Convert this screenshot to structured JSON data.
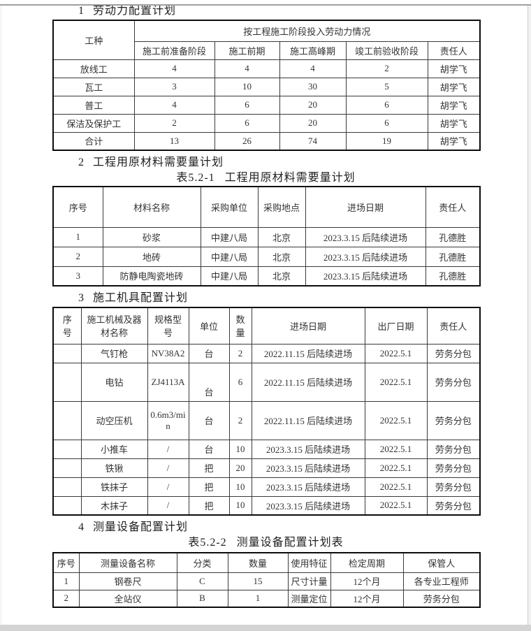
{
  "sections": [
    {
      "number": "1",
      "title": "劳动力配置计划"
    },
    {
      "number": "2",
      "title": "工程用原材料需要量计划"
    },
    {
      "number": "3",
      "title": "施工机具配置计划"
    },
    {
      "number": "4",
      "title": "测量设备配置计划"
    }
  ],
  "captions": [
    {
      "label": "表5.2-1",
      "title": "工程用原材料需要量计划"
    },
    {
      "label": "表5.2-2",
      "title": "测量设备配置计划表"
    }
  ],
  "tables": {
    "labor": {
      "corner_header": "工种",
      "span_header": "按工程施工阶段投入劳动力情况",
      "sub_headers": [
        "施工前准备阶段",
        "施工前期",
        "施工高峰期",
        "竣工前验收阶段",
        "责任人"
      ],
      "rows": [
        [
          "放线工",
          "4",
          "4",
          "4",
          "2",
          "胡学飞"
        ],
        [
          "瓦工",
          "3",
          "10",
          "30",
          "5",
          "胡学飞"
        ],
        [
          "普工",
          "4",
          "6",
          "20",
          "6",
          "胡学飞"
        ],
        [
          "保洁及保护工",
          "2",
          "6",
          "20",
          "6",
          "胡学飞"
        ],
        [
          "合计",
          "13",
          "26",
          "74",
          "19",
          "胡学飞"
        ]
      ]
    },
    "materials": {
      "headers": [
        "序号",
        "材料名称",
        "采购单位",
        "采购地点",
        "进场日期",
        "责任人"
      ],
      "rows": [
        [
          "1",
          "砂浆",
          "中建八局",
          "北京",
          "2023.3.15 后陆续进场",
          "孔德胜"
        ],
        [
          "2",
          "地砖",
          "中建八局",
          "北京",
          "2023.3.15 后陆续进场",
          "孔德胜"
        ],
        [
          "3",
          "防静电陶瓷地砖",
          "中建八局",
          "北京",
          "2023.3.15 后陆续进场",
          "孔德胜"
        ]
      ]
    },
    "machines": {
      "headers": [
        "序号",
        "施工机械及器材名称",
        "规格型号",
        "单位",
        "数量",
        "进场日期",
        "出厂日期",
        "责任人"
      ],
      "rows": [
        [
          "",
          "气钉枪",
          "NV38A2",
          "台",
          "2",
          "2022.11.15 后陆续进场",
          "2022.5.1",
          "劳务分包"
        ],
        [
          "",
          "电钻",
          "ZJ4113A",
          "台",
          "6",
          "2022.11.15 后陆续进场",
          "2022.5.1",
          "劳务分包"
        ],
        [
          "",
          "动空压机",
          "0.6m3/min",
          "台",
          "2",
          "2022.11.15 后陆续进场",
          "2022.5.1",
          "劳务分包"
        ],
        [
          "",
          "小推车",
          "/",
          "台",
          "10",
          "2023.3.15 后陆续进场",
          "2022.5.1",
          "劳务分包"
        ],
        [
          "",
          "铁锹",
          "/",
          "把",
          "20",
          "2023.3.15 后陆续进场",
          "2022.5.1",
          "劳务分包"
        ],
        [
          "",
          "铁抹子",
          "/",
          "把",
          "10",
          "2023.3.15 后陆续进场",
          "2022.5.1",
          "劳务分包"
        ],
        [
          "",
          "木抹子",
          "/",
          "把",
          "10",
          "2023.3.15 后陆续进场",
          "2022.5.1",
          "劳务分包"
        ]
      ]
    },
    "instruments": {
      "headers": [
        "序号",
        "测量设备名称",
        "分类",
        "数量",
        "使用特征",
        "检定周期",
        "保管人"
      ],
      "rows": [
        [
          "1",
          "钢卷尺",
          "C",
          "15",
          "尺寸计量",
          "12个月",
          "各专业工程师"
        ],
        [
          "2",
          "全站仪",
          "B",
          "1",
          "测量定位",
          "12个月",
          "劳务分包"
        ]
      ]
    }
  }
}
